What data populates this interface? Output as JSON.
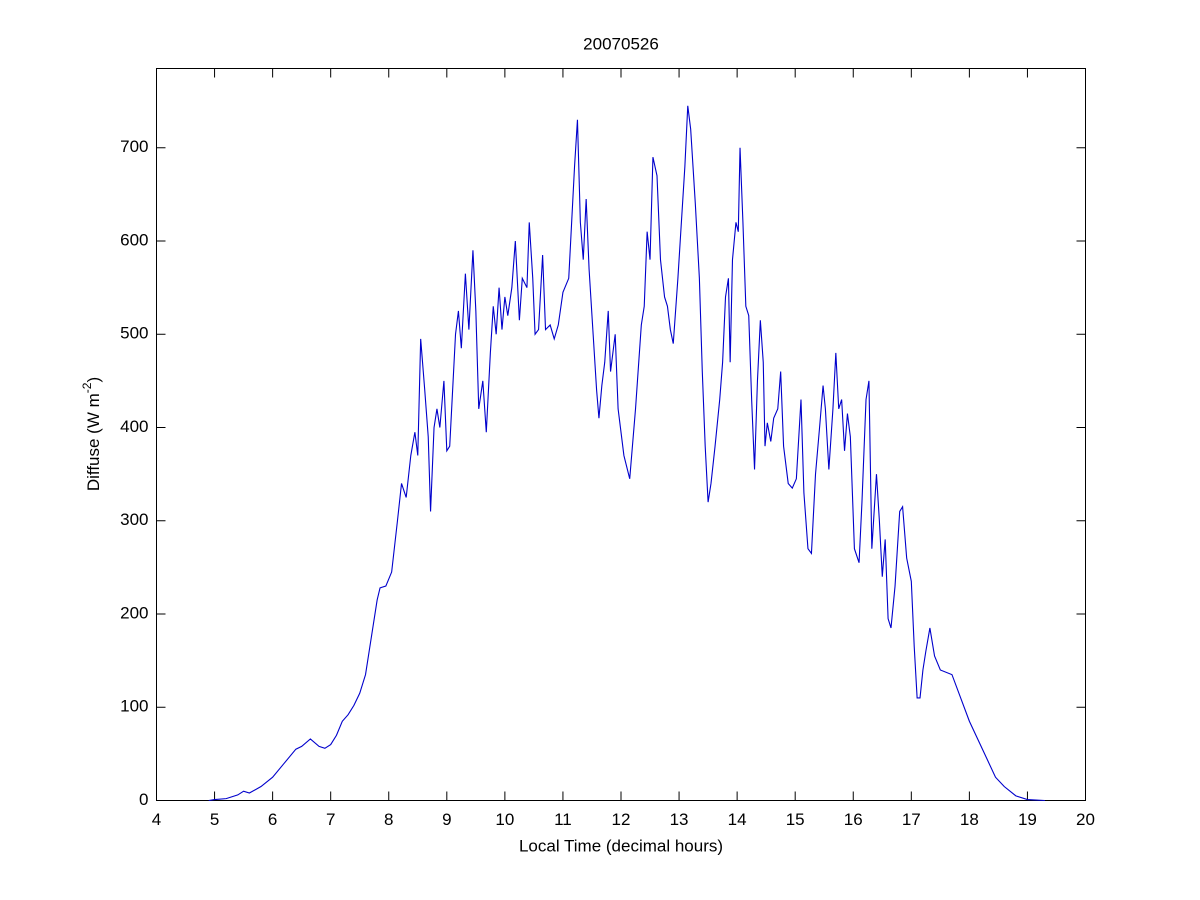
{
  "chart_data": {
    "type": "line",
    "title": "20070526",
    "x_label": "Local Time (decimal hours)",
    "y_label_parts": [
      "Diffuse (W m",
      "-2",
      ")"
    ],
    "color": "#0000cc",
    "xlim": [
      4,
      20
    ],
    "xticks": [
      4,
      5,
      6,
      7,
      8,
      9,
      10,
      11,
      12,
      13,
      14,
      15,
      16,
      17,
      18,
      19,
      20
    ],
    "ylim": [
      0,
      785
    ],
    "yticks": [
      0,
      100,
      200,
      300,
      400,
      500,
      600,
      700
    ],
    "x": [
      4.9,
      5.0,
      5.2,
      5.4,
      5.5,
      5.6,
      5.8,
      6.0,
      6.2,
      6.4,
      6.5,
      6.65,
      6.8,
      6.9,
      7.0,
      7.1,
      7.2,
      7.3,
      7.4,
      7.5,
      7.6,
      7.7,
      7.8,
      7.85,
      7.95,
      8.05,
      8.15,
      8.22,
      8.3,
      8.38,
      8.45,
      8.5,
      8.55,
      8.62,
      8.68,
      8.72,
      8.78,
      8.83,
      8.88,
      8.95,
      9.0,
      9.05,
      9.15,
      9.2,
      9.25,
      9.32,
      9.38,
      9.45,
      9.5,
      9.55,
      9.62,
      9.68,
      9.75,
      9.8,
      9.85,
      9.9,
      9.95,
      10.0,
      10.05,
      10.12,
      10.18,
      10.25,
      10.3,
      10.38,
      10.42,
      10.48,
      10.52,
      10.58,
      10.65,
      10.7,
      10.78,
      10.85,
      10.92,
      11.0,
      11.1,
      11.2,
      11.25,
      11.3,
      11.35,
      11.4,
      11.45,
      11.52,
      11.58,
      11.62,
      11.67,
      11.72,
      11.78,
      11.82,
      11.9,
      11.95,
      12.05,
      12.15,
      12.25,
      12.35,
      12.4,
      12.45,
      12.5,
      12.55,
      12.62,
      12.68,
      12.75,
      12.8,
      12.85,
      12.9,
      12.98,
      13.02,
      13.1,
      13.15,
      13.2,
      13.28,
      13.35,
      13.4,
      13.45,
      13.5,
      13.55,
      13.62,
      13.7,
      13.75,
      13.8,
      13.85,
      13.88,
      13.92,
      13.98,
      14.02,
      14.05,
      14.1,
      14.15,
      14.2,
      14.25,
      14.3,
      14.35,
      14.4,
      14.45,
      14.48,
      14.52,
      14.58,
      14.63,
      14.7,
      14.75,
      14.8,
      14.88,
      14.95,
      15.02,
      15.1,
      15.15,
      15.22,
      15.28,
      15.35,
      15.42,
      15.48,
      15.52,
      15.58,
      15.65,
      15.7,
      15.75,
      15.8,
      15.85,
      15.9,
      15.95,
      16.02,
      16.1,
      16.15,
      16.22,
      16.27,
      16.32,
      16.4,
      16.45,
      16.5,
      16.55,
      16.6,
      16.65,
      16.72,
      16.8,
      16.85,
      16.92,
      17.0,
      17.05,
      17.1,
      17.15,
      17.2,
      17.25,
      17.32,
      17.4,
      17.5,
      17.7,
      17.85,
      18.0,
      18.15,
      18.3,
      18.45,
      18.6,
      18.8,
      19.0,
      19.3
    ],
    "values": [
      0,
      1,
      2,
      6,
      10,
      8,
      15,
      25,
      40,
      55,
      58,
      66,
      58,
      56,
      60,
      70,
      85,
      92,
      102,
      115,
      135,
      175,
      215,
      228,
      230,
      245,
      300,
      340,
      325,
      370,
      395,
      370,
      495,
      440,
      390,
      310,
      400,
      420,
      400,
      450,
      375,
      380,
      500,
      525,
      485,
      565,
      505,
      590,
      525,
      420,
      450,
      395,
      480,
      530,
      500,
      550,
      505,
      540,
      520,
      550,
      600,
      515,
      560,
      550,
      620,
      560,
      500,
      505,
      585,
      505,
      510,
      495,
      510,
      545,
      560,
      680,
      730,
      620,
      580,
      645,
      570,
      500,
      440,
      410,
      445,
      470,
      525,
      460,
      500,
      420,
      370,
      345,
      420,
      510,
      530,
      610,
      580,
      690,
      670,
      580,
      540,
      530,
      505,
      490,
      560,
      600,
      680,
      745,
      720,
      640,
      560,
      460,
      380,
      320,
      340,
      380,
      430,
      470,
      540,
      560,
      470,
      580,
      620,
      610,
      700,
      620,
      530,
      520,
      430,
      355,
      450,
      515,
      470,
      380,
      405,
      385,
      410,
      420,
      460,
      380,
      340,
      335,
      345,
      430,
      330,
      270,
      265,
      350,
      400,
      445,
      420,
      355,
      420,
      480,
      420,
      430,
      375,
      415,
      390,
      270,
      255,
      320,
      430,
      450,
      270,
      350,
      300,
      240,
      280,
      195,
      185,
      230,
      310,
      315,
      260,
      235,
      165,
      110,
      110,
      140,
      160,
      185,
      155,
      140,
      135,
      110,
      85,
      65,
      45,
      25,
      15,
      5,
      1,
      0
    ]
  }
}
